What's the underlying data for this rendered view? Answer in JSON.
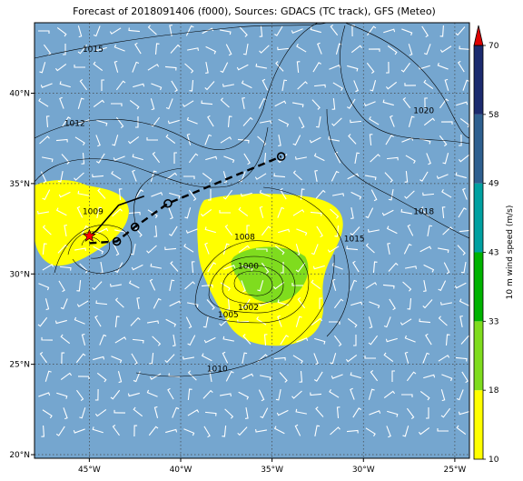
{
  "title": "Forecast of 2018091406 (f000), Sources: GDACS (TC track), GFS (Meteo)",
  "map": {
    "lon_range": [
      -48.0,
      -24.2
    ],
    "lat_range": [
      19.8,
      43.9
    ],
    "x_ticks": [
      {
        "lon": -45,
        "label": "45°W"
      },
      {
        "lon": -40,
        "label": "40°W"
      },
      {
        "lon": -35,
        "label": "35°W"
      },
      {
        "lon": -30,
        "label": "30°W"
      },
      {
        "lon": -25,
        "label": "25°W"
      }
    ],
    "y_ticks": [
      {
        "lat": 20,
        "label": "20°N"
      },
      {
        "lat": 25,
        "label": "25°N"
      },
      {
        "lat": 30,
        "label": "30°N"
      },
      {
        "lat": 35,
        "label": "35°N"
      },
      {
        "lat": 40,
        "label": "40°N"
      }
    ],
    "background_color": "#75a6cf",
    "gridlines": true,
    "isobar_labels": [
      {
        "text": "1015",
        "lon": -44.8,
        "lat": 42.3
      },
      {
        "text": "1012",
        "lon": -45.8,
        "lat": 38.2
      },
      {
        "text": "1020",
        "lon": -26.7,
        "lat": 38.9
      },
      {
        "text": "1018",
        "lon": -26.7,
        "lat": 33.3
      },
      {
        "text": "1015",
        "lon": -30.5,
        "lat": 31.8
      },
      {
        "text": "1009",
        "lon": -44.8,
        "lat": 33.3
      },
      {
        "text": "1008",
        "lon": -36.5,
        "lat": 31.9
      },
      {
        "text": "1000",
        "lon": -36.3,
        "lat": 30.3
      },
      {
        "text": "1002",
        "lon": -36.3,
        "lat": 28.0
      },
      {
        "text": "1005",
        "lon": -37.4,
        "lat": 27.6
      },
      {
        "text": "1010",
        "lon": -38.0,
        "lat": 24.6
      }
    ],
    "storm_position": {
      "lon": -45.0,
      "lat": 32.1
    },
    "track_past": [
      {
        "lon": -42.0,
        "lat": 34.3
      },
      {
        "lon": -43.4,
        "lat": 33.8
      },
      {
        "lon": -44.0,
        "lat": 33.1
      },
      {
        "lon": -44.6,
        "lat": 32.4
      },
      {
        "lon": -45.0,
        "lat": 32.1
      }
    ],
    "track_forecast": [
      {
        "lon": -45.0,
        "lat": 31.7
      },
      {
        "lon": -43.5,
        "lat": 31.8
      },
      {
        "lon": -42.5,
        "lat": 32.6
      },
      {
        "lon": -40.7,
        "lat": 33.9
      },
      {
        "lon": -34.5,
        "lat": 36.5
      }
    ]
  },
  "colorbar": {
    "label": "10 m wind speed (m/s)",
    "bands": [
      {
        "from": 10,
        "to": 18,
        "color": "#ffff00"
      },
      {
        "from": 18,
        "to": 33,
        "color": "#7fdc1e"
      },
      {
        "from": 33,
        "to": 43,
        "color": "#00b300"
      },
      {
        "from": 43,
        "to": 49,
        "color": "#00a0a0"
      },
      {
        "from": 49,
        "to": 58,
        "color": "#2e5f8f"
      },
      {
        "from": 58,
        "to": 70,
        "color": "#1b2a6e"
      }
    ],
    "extend_color": "#dd0000",
    "ticks": [
      "10",
      "18",
      "33",
      "43",
      "49",
      "58",
      "70"
    ]
  }
}
